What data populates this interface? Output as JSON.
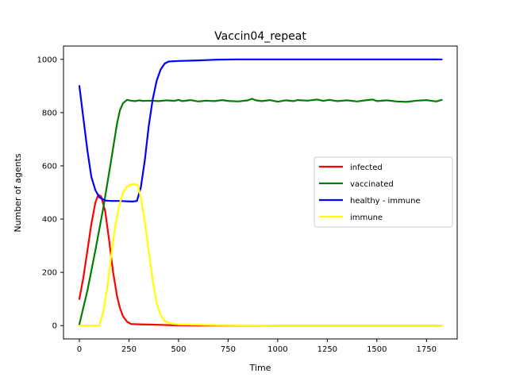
{
  "chart_data": {
    "type": "line",
    "title": "Vaccin04_repeat",
    "xlabel": "Time",
    "ylabel": "Number of agents",
    "xlim": [
      -80,
      1905
    ],
    "ylim": [
      -50,
      1050
    ],
    "xticks": [
      0,
      250,
      500,
      750,
      1000,
      1250,
      1500,
      1750
    ],
    "yticks": [
      0,
      200,
      400,
      600,
      800,
      1000
    ],
    "grid": false,
    "legend_position": "center-right",
    "series": [
      {
        "name": "infected",
        "color": "#ff0000",
        "points": [
          [
            0,
            100
          ],
          [
            20,
            180
          ],
          [
            40,
            280
          ],
          [
            60,
            380
          ],
          [
            80,
            460
          ],
          [
            95,
            492
          ],
          [
            110,
            485
          ],
          [
            130,
            430
          ],
          [
            150,
            320
          ],
          [
            170,
            200
          ],
          [
            190,
            110
          ],
          [
            205,
            65
          ],
          [
            220,
            35
          ],
          [
            240,
            15
          ],
          [
            260,
            6
          ],
          [
            300,
            5
          ],
          [
            350,
            4
          ],
          [
            400,
            3
          ],
          [
            450,
            2
          ],
          [
            500,
            1
          ],
          [
            600,
            0
          ],
          [
            800,
            0
          ],
          [
            1000,
            0
          ],
          [
            1200,
            0
          ],
          [
            1400,
            0
          ],
          [
            1600,
            0
          ],
          [
            1827,
            0
          ]
        ]
      },
      {
        "name": "vaccinated",
        "color": "#008000",
        "points": [
          [
            0,
            5
          ],
          [
            40,
            130
          ],
          [
            80,
            280
          ],
          [
            120,
            440
          ],
          [
            160,
            620
          ],
          [
            190,
            760
          ],
          [
            205,
            810
          ],
          [
            220,
            835
          ],
          [
            240,
            848
          ],
          [
            260,
            845
          ],
          [
            280,
            843
          ],
          [
            300,
            846
          ],
          [
            320,
            844
          ],
          [
            360,
            845
          ],
          [
            400,
            843
          ],
          [
            440,
            846
          ],
          [
            480,
            844
          ],
          [
            500,
            848
          ],
          [
            520,
            843
          ],
          [
            560,
            847
          ],
          [
            600,
            842
          ],
          [
            640,
            845
          ],
          [
            680,
            843
          ],
          [
            720,
            847
          ],
          [
            750,
            844
          ],
          [
            800,
            842
          ],
          [
            850,
            846
          ],
          [
            870,
            852
          ],
          [
            890,
            846
          ],
          [
            920,
            843
          ],
          [
            960,
            847
          ],
          [
            1000,
            841
          ],
          [
            1040,
            846
          ],
          [
            1080,
            843
          ],
          [
            1100,
            847
          ],
          [
            1150,
            845
          ],
          [
            1200,
            849
          ],
          [
            1230,
            844
          ],
          [
            1260,
            848
          ],
          [
            1300,
            843
          ],
          [
            1350,
            846
          ],
          [
            1400,
            842
          ],
          [
            1450,
            847
          ],
          [
            1480,
            849
          ],
          [
            1500,
            843
          ],
          [
            1550,
            846
          ],
          [
            1600,
            842
          ],
          [
            1650,
            840
          ],
          [
            1700,
            845
          ],
          [
            1750,
            847
          ],
          [
            1800,
            842
          ],
          [
            1827,
            848
          ]
        ]
      },
      {
        "name": "healthy - immune",
        "color": "#0000ff",
        "points": [
          [
            0,
            900
          ],
          [
            20,
            780
          ],
          [
            40,
            660
          ],
          [
            60,
            560
          ],
          [
            80,
            510
          ],
          [
            100,
            482
          ],
          [
            130,
            470
          ],
          [
            160,
            468
          ],
          [
            200,
            468
          ],
          [
            240,
            467
          ],
          [
            270,
            466
          ],
          [
            290,
            468
          ],
          [
            310,
            520
          ],
          [
            330,
            620
          ],
          [
            350,
            750
          ],
          [
            370,
            850
          ],
          [
            390,
            920
          ],
          [
            410,
            962
          ],
          [
            430,
            984
          ],
          [
            450,
            992
          ],
          [
            500,
            994
          ],
          [
            600,
            996
          ],
          [
            700,
            999
          ],
          [
            800,
            1000
          ],
          [
            1000,
            1000
          ],
          [
            1200,
            1000
          ],
          [
            1400,
            1000
          ],
          [
            1600,
            1000
          ],
          [
            1827,
            1000
          ]
        ]
      },
      {
        "name": "immune",
        "color": "#ffff00",
        "points": [
          [
            0,
            0
          ],
          [
            90,
            0
          ],
          [
            100,
            1
          ],
          [
            120,
            50
          ],
          [
            140,
            140
          ],
          [
            160,
            260
          ],
          [
            180,
            370
          ],
          [
            200,
            450
          ],
          [
            220,
            500
          ],
          [
            240,
            522
          ],
          [
            260,
            530
          ],
          [
            280,
            532
          ],
          [
            295,
            528
          ],
          [
            310,
            480
          ],
          [
            330,
            390
          ],
          [
            350,
            280
          ],
          [
            370,
            170
          ],
          [
            390,
            85
          ],
          [
            410,
            40
          ],
          [
            430,
            18
          ],
          [
            460,
            8
          ],
          [
            500,
            5
          ],
          [
            550,
            4
          ],
          [
            600,
            3
          ],
          [
            700,
            2
          ],
          [
            800,
            1
          ],
          [
            1000,
            0
          ],
          [
            1200,
            0
          ],
          [
            1400,
            0
          ],
          [
            1600,
            0
          ],
          [
            1827,
            0
          ]
        ]
      }
    ]
  }
}
